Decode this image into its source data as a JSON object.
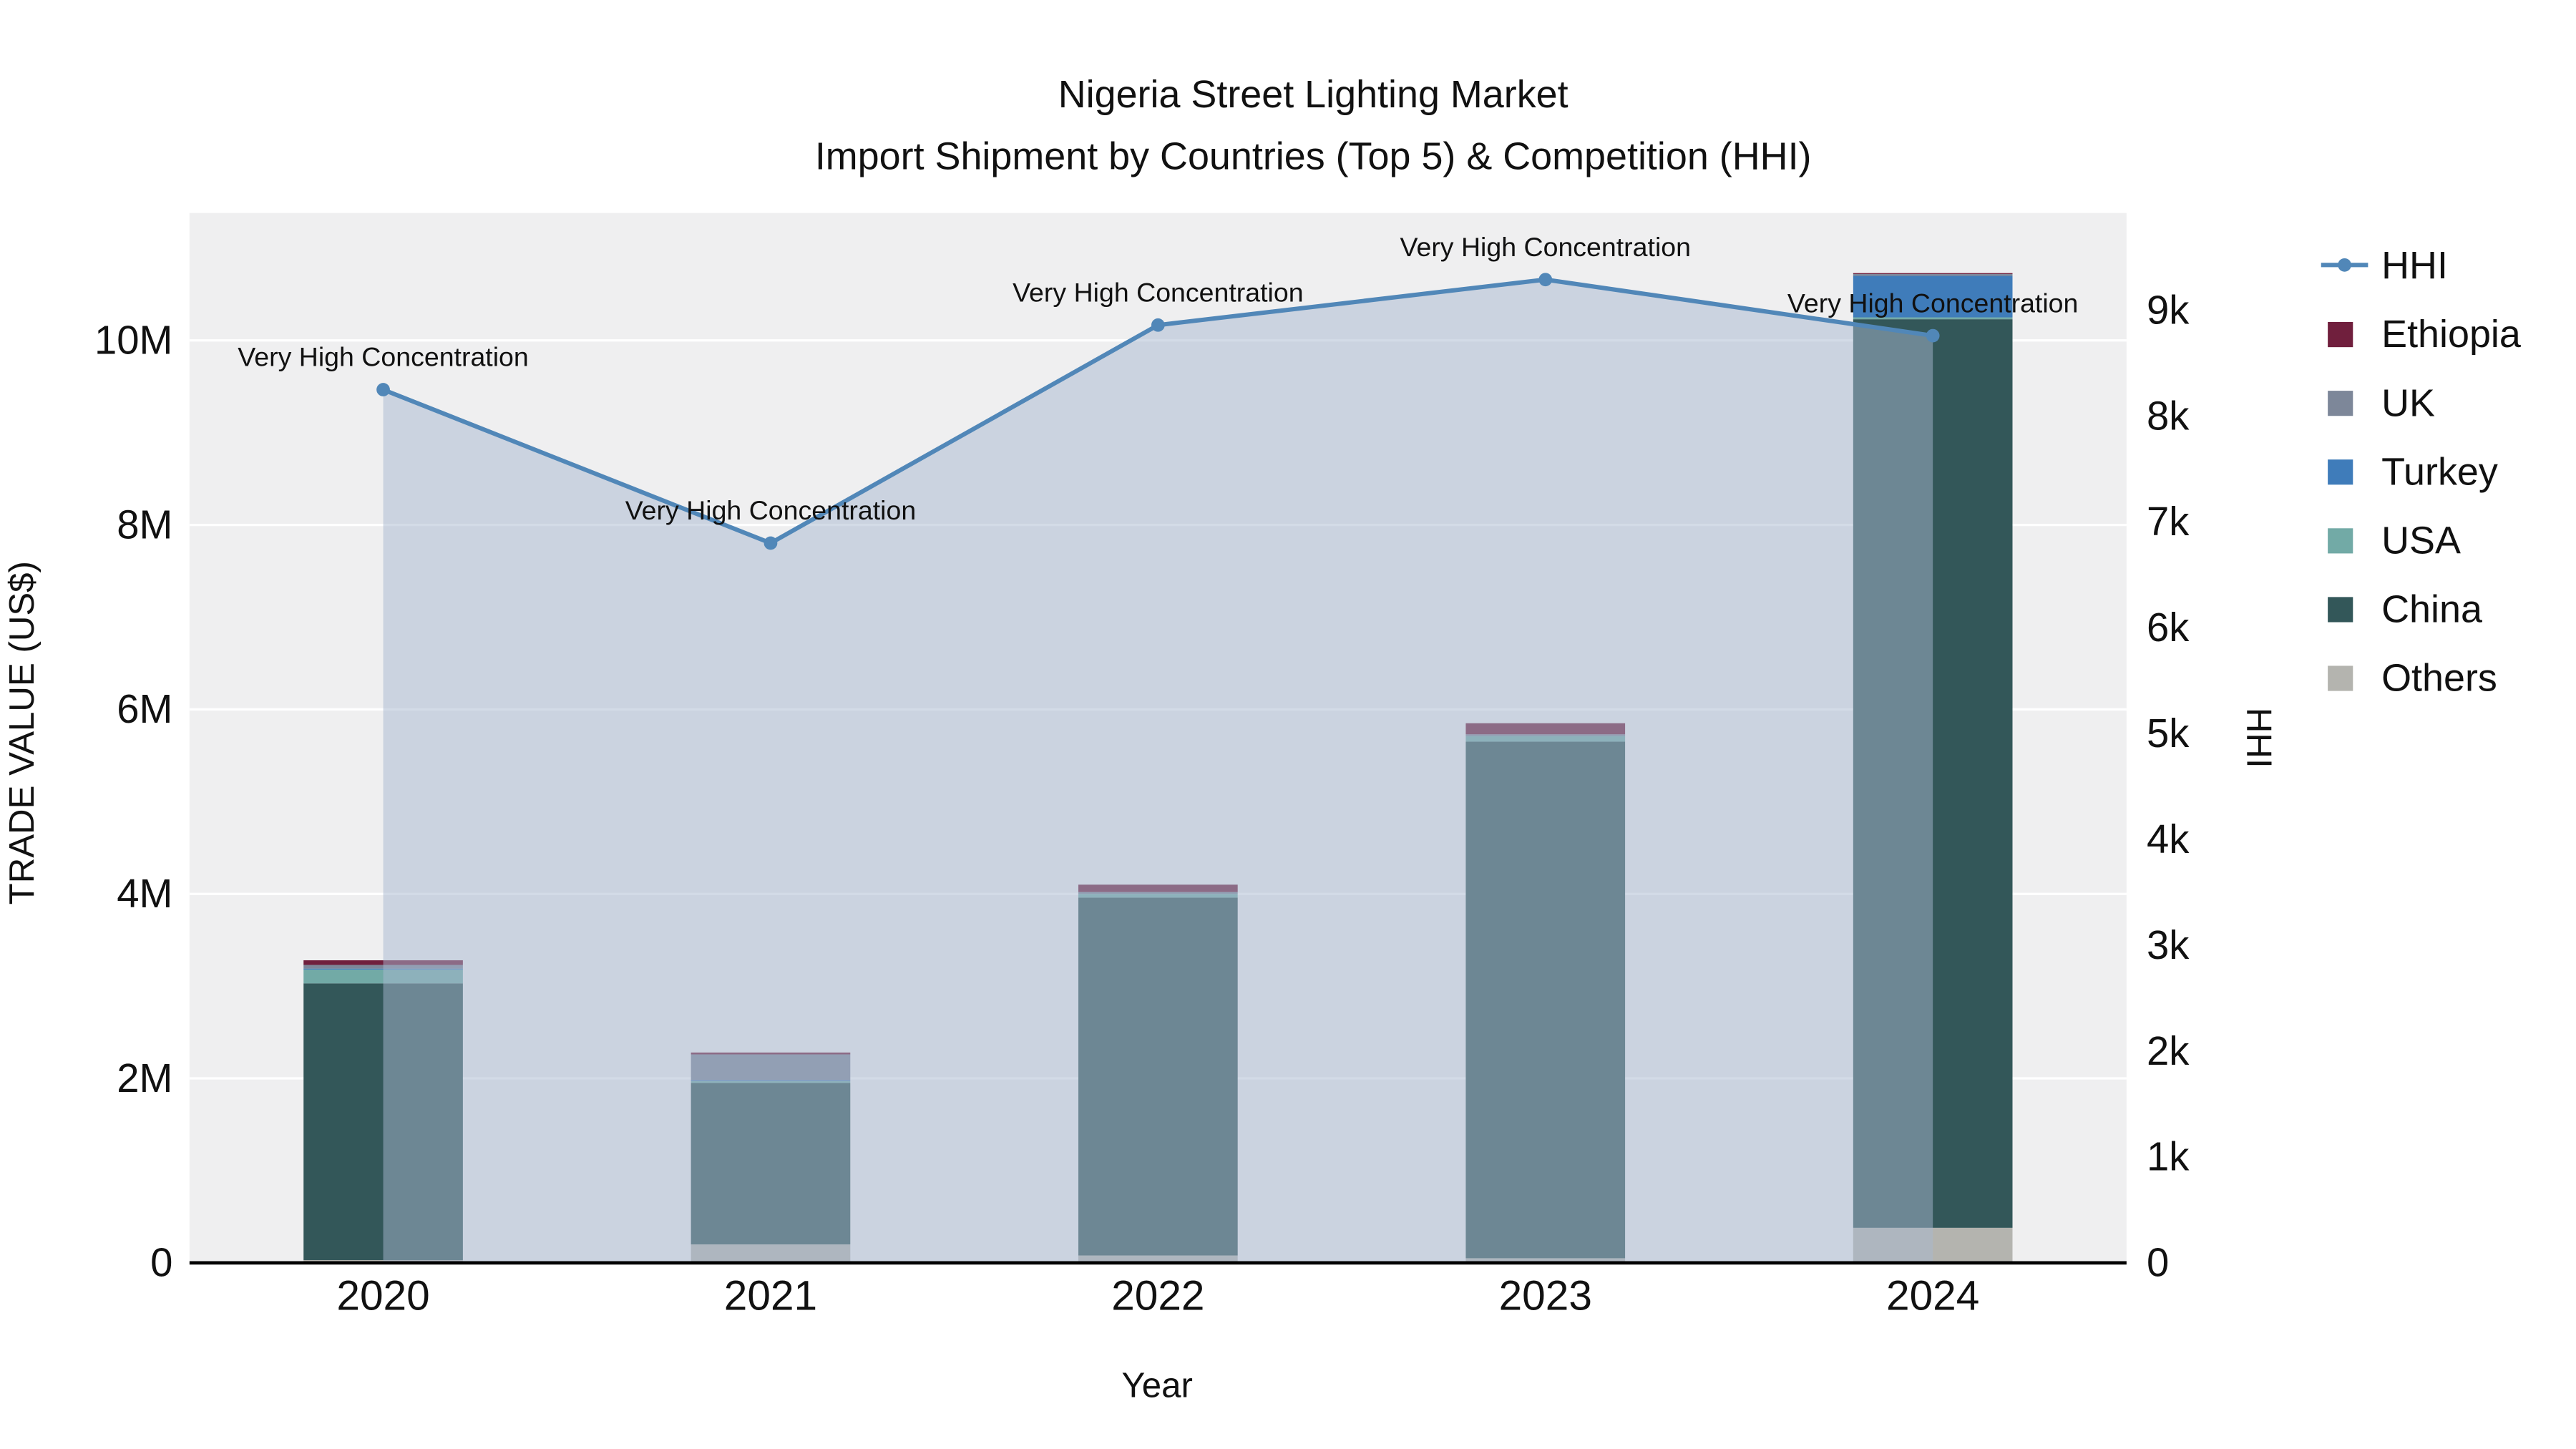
{
  "page": {
    "background": "#ffffff"
  },
  "chart_data": {
    "type": "combo-stacked-bar-line",
    "title": "Nigeria Street Lighting Market",
    "subtitle": "Import Shipment by Countries (Top 5) & Competition (HHI)",
    "xlabel": "Year",
    "ylabel_left": "TRADE VALUE (US$)",
    "ylabel_right": "HHI",
    "categories": [
      "2020",
      "2021",
      "2022",
      "2023",
      "2024"
    ],
    "bar_unit": "million US$",
    "bar_series": [
      {
        "name": "Others",
        "color": "#b4b4af",
        "values": [
          0.03,
          0.2,
          0.08,
          0.05,
          0.38
        ]
      },
      {
        "name": "China",
        "color": "#335759",
        "values": [
          3.0,
          1.75,
          3.88,
          5.6,
          9.85
        ]
      },
      {
        "name": "USA",
        "color": "#72aaa6",
        "values": [
          0.15,
          0.02,
          0.04,
          0.06,
          0.02
        ]
      },
      {
        "name": "Turkey",
        "color": "#3f7cba",
        "values": [
          0.01,
          0.01,
          0.0,
          0.0,
          0.45
        ]
      },
      {
        "name": "UK",
        "color": "#7d8799",
        "values": [
          0.04,
          0.28,
          0.02,
          0.02,
          0.02
        ]
      },
      {
        "name": "Ethiopia",
        "color": "#701f3d",
        "values": [
          0.05,
          0.02,
          0.08,
          0.12,
          0.01
        ]
      }
    ],
    "line_series": {
      "name": "HHI",
      "color": "#5187b8",
      "area_fill": "#a8b8cf",
      "area_opacity": 0.5,
      "values": [
        8250,
        6800,
        8860,
        9290,
        8760
      ]
    },
    "point_annotations": [
      "Very High Concentration",
      "Very High Concentration",
      "Very High Concentration",
      "Very High Concentration",
      "Very High Concentration"
    ],
    "axis_left": {
      "tick_values": [
        0,
        2,
        4,
        6,
        8,
        10
      ],
      "tick_labels": [
        "0",
        "2M",
        "4M",
        "6M",
        "8M",
        "10M"
      ],
      "range": [
        0,
        11.4
      ]
    },
    "axis_right": {
      "tick_values": [
        0,
        1,
        2,
        3,
        4,
        5,
        6,
        7,
        8,
        9
      ],
      "tick_labels": [
        "0",
        "1k",
        "2k",
        "3k",
        "4k",
        "5k",
        "6k",
        "7k",
        "8k",
        "9k"
      ],
      "range": [
        0,
        9.92
      ]
    },
    "legend": [
      "HHI",
      "Ethiopia",
      "UK",
      "Turkey",
      "USA",
      "China",
      "Others"
    ],
    "plot_bg": "#efeff0",
    "grid_color": "#ffffff",
    "axis_line_color": "#000000"
  }
}
